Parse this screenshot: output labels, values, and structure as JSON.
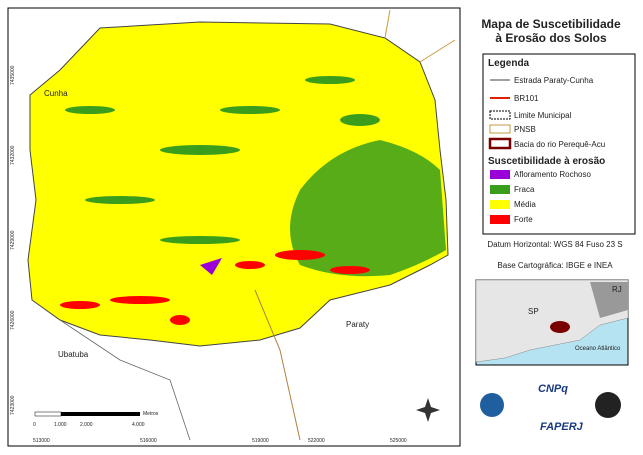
{
  "header": {
    "title_line1": "Mapa de Suscetibilidade",
    "title_line2": "à Erosão dos Solos"
  },
  "legend": {
    "title": "Legenda",
    "lines": [
      "Estrada Paraty-Cunha",
      "BR101",
      "Limite Municipal",
      "PNSB",
      "Bacia do rio Perequê-Acu"
    ],
    "subtitle": "Suscetibilidade à erosão",
    "classes": [
      "Afloramento Rochoso",
      "Fraca",
      "Média",
      "Forte"
    ]
  },
  "notes": {
    "datum": "Datum Horizontal: WGS 84 Fuso 23 S",
    "base": "Base Cartográfica: IBGE e INEA"
  },
  "map": {
    "places": [
      "Cunha",
      "Paraty",
      "Ubatuba"
    ],
    "x_coords": [
      "513000",
      "516000",
      "519000",
      "522000",
      "525000"
    ],
    "y_coords": [
      "7435000",
      "7432000",
      "7429000",
      "7426000",
      "7423000"
    ],
    "scale": {
      "labels": [
        "0",
        "1.000",
        "2.000",
        "4.000"
      ],
      "unit": "Metros"
    }
  },
  "inset": {
    "labels": [
      "RJ",
      "SP",
      "Oceano Atlântico"
    ]
  },
  "logos": [
    "CNPq",
    "FAPERJ"
  ]
}
